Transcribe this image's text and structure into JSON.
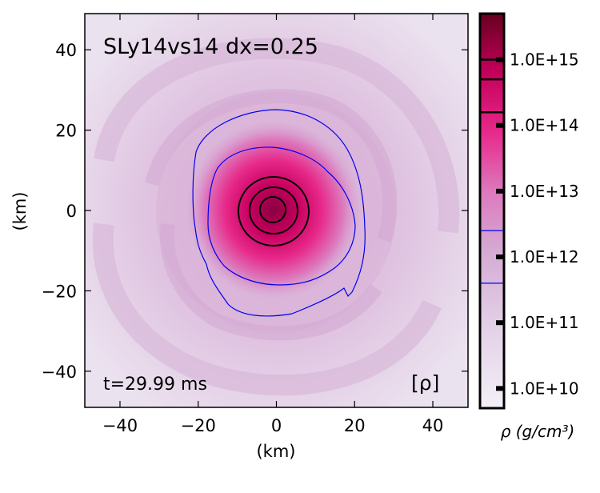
{
  "chart_data": {
    "type": "heatmap",
    "title": "SLy14vs14 dx=0.25",
    "time_annotation": "t=29.99 ms",
    "field_label": "[ρ]",
    "xlabel": "(km)",
    "ylabel": "(km)",
    "xlim": [
      -49,
      49
    ],
    "ylim": [
      -49,
      49
    ],
    "x_ticks": [
      -40,
      -20,
      0,
      20,
      40
    ],
    "y_ticks": [
      -40,
      -20,
      0,
      20,
      40
    ],
    "x_tick_labels": [
      "−40",
      "−20",
      "0",
      "20",
      "40"
    ],
    "y_tick_labels": [
      "−40",
      "−20",
      "0",
      "20",
      "40"
    ],
    "colorbar": {
      "label": "ρ (g/cm³)",
      "scale": "log",
      "range_log10": [
        9.7,
        15.7
      ],
      "ticks_log10": [
        10,
        11,
        12,
        13,
        14,
        15
      ],
      "tick_labels": [
        "1.0E+10",
        "1.0E+11",
        "1.0E+12",
        "1.0E+13",
        "1.0E+14",
        "1.0E+15"
      ],
      "contour_levels_log10": [
        11.6,
        12.4,
        14.2,
        14.7,
        15.0
      ],
      "colors": [
        "#f2eef6",
        "#d9b5d8",
        "#e7298a",
        "#980043",
        "#67001f"
      ]
    },
    "contours_blue_color": "#0000ee",
    "contours_black_color": "#000000",
    "density_center": [
      -1,
      1
    ]
  }
}
